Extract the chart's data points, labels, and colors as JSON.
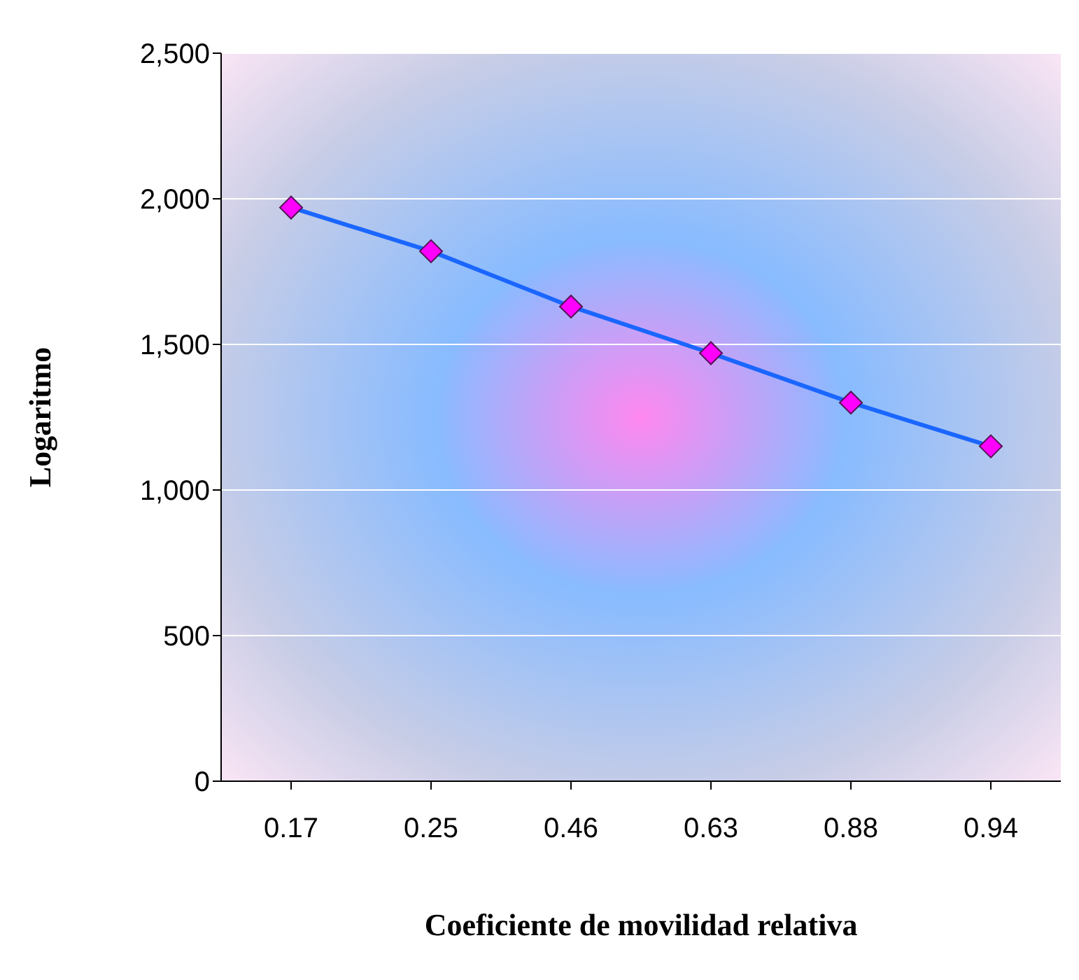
{
  "chart_data": {
    "type": "line",
    "xlabel": "Coeficiente de movilidad relativa",
    "ylabel": "Logaritmo",
    "categories": [
      "0.17",
      "0.25",
      "0.46",
      "0.63",
      "0.88",
      "0.94"
    ],
    "series": [
      {
        "color": "#1a66ff",
        "values": [
          1970,
          1820,
          1630,
          1470,
          1300,
          1150
        ]
      }
    ],
    "ylim": [
      0,
      2500
    ],
    "yticks": [
      {
        "value": 0,
        "label": "0"
      },
      {
        "value": 500,
        "label": "500"
      },
      {
        "value": 1000,
        "label": "1,000"
      },
      {
        "value": 1500,
        "label": "1,500"
      },
      {
        "value": 2000,
        "label": "2,000"
      },
      {
        "value": 2500,
        "label": "2,500"
      }
    ],
    "grid": "y",
    "marker": "diamond",
    "line_style": "solid",
    "legend": false
  }
}
